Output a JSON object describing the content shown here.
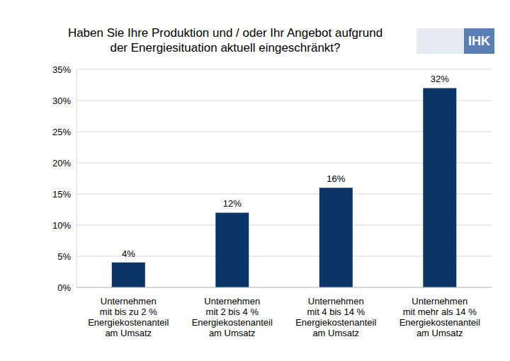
{
  "chart_data": {
    "type": "bar",
    "title": "Haben Sie Ihre Produktion und / oder Ihr Angebot aufgrund\nder Energiesituation aktuell eingeschränkt?",
    "annotations": [
      "IHK"
    ],
    "categories": [
      "Unternehmen\nmit bis zu 2 %\nEnergiekostenanteil\nam Umsatz",
      "Unternehmen\nmit 2 bis 4 %\nEnergiekostenanteil\nam Umsatz",
      "Unternehmen\nmit 4 bis 14 %\nEnergiekostenanteil\nam Umsatz",
      "Unternehmen\nmit mehr als 14 %\nEnergiekostenanteil\nam Umsatz"
    ],
    "values": [
      4,
      12,
      16,
      32
    ],
    "value_labels": [
      "4%",
      "12%",
      "16%",
      "32%"
    ],
    "data_labels": true,
    "color": "#0b3467",
    "ylim": [
      0,
      35
    ],
    "yticks": [
      {
        "value": 0,
        "label": "0%"
      },
      {
        "value": 5,
        "label": "5%"
      },
      {
        "value": 10,
        "label": "10%"
      },
      {
        "value": 15,
        "label": "15%"
      },
      {
        "value": 20,
        "label": "20%"
      },
      {
        "value": 25,
        "label": "25%"
      },
      {
        "value": 30,
        "label": "30%"
      },
      {
        "value": 35,
        "label": "35%"
      }
    ],
    "grid": true
  }
}
